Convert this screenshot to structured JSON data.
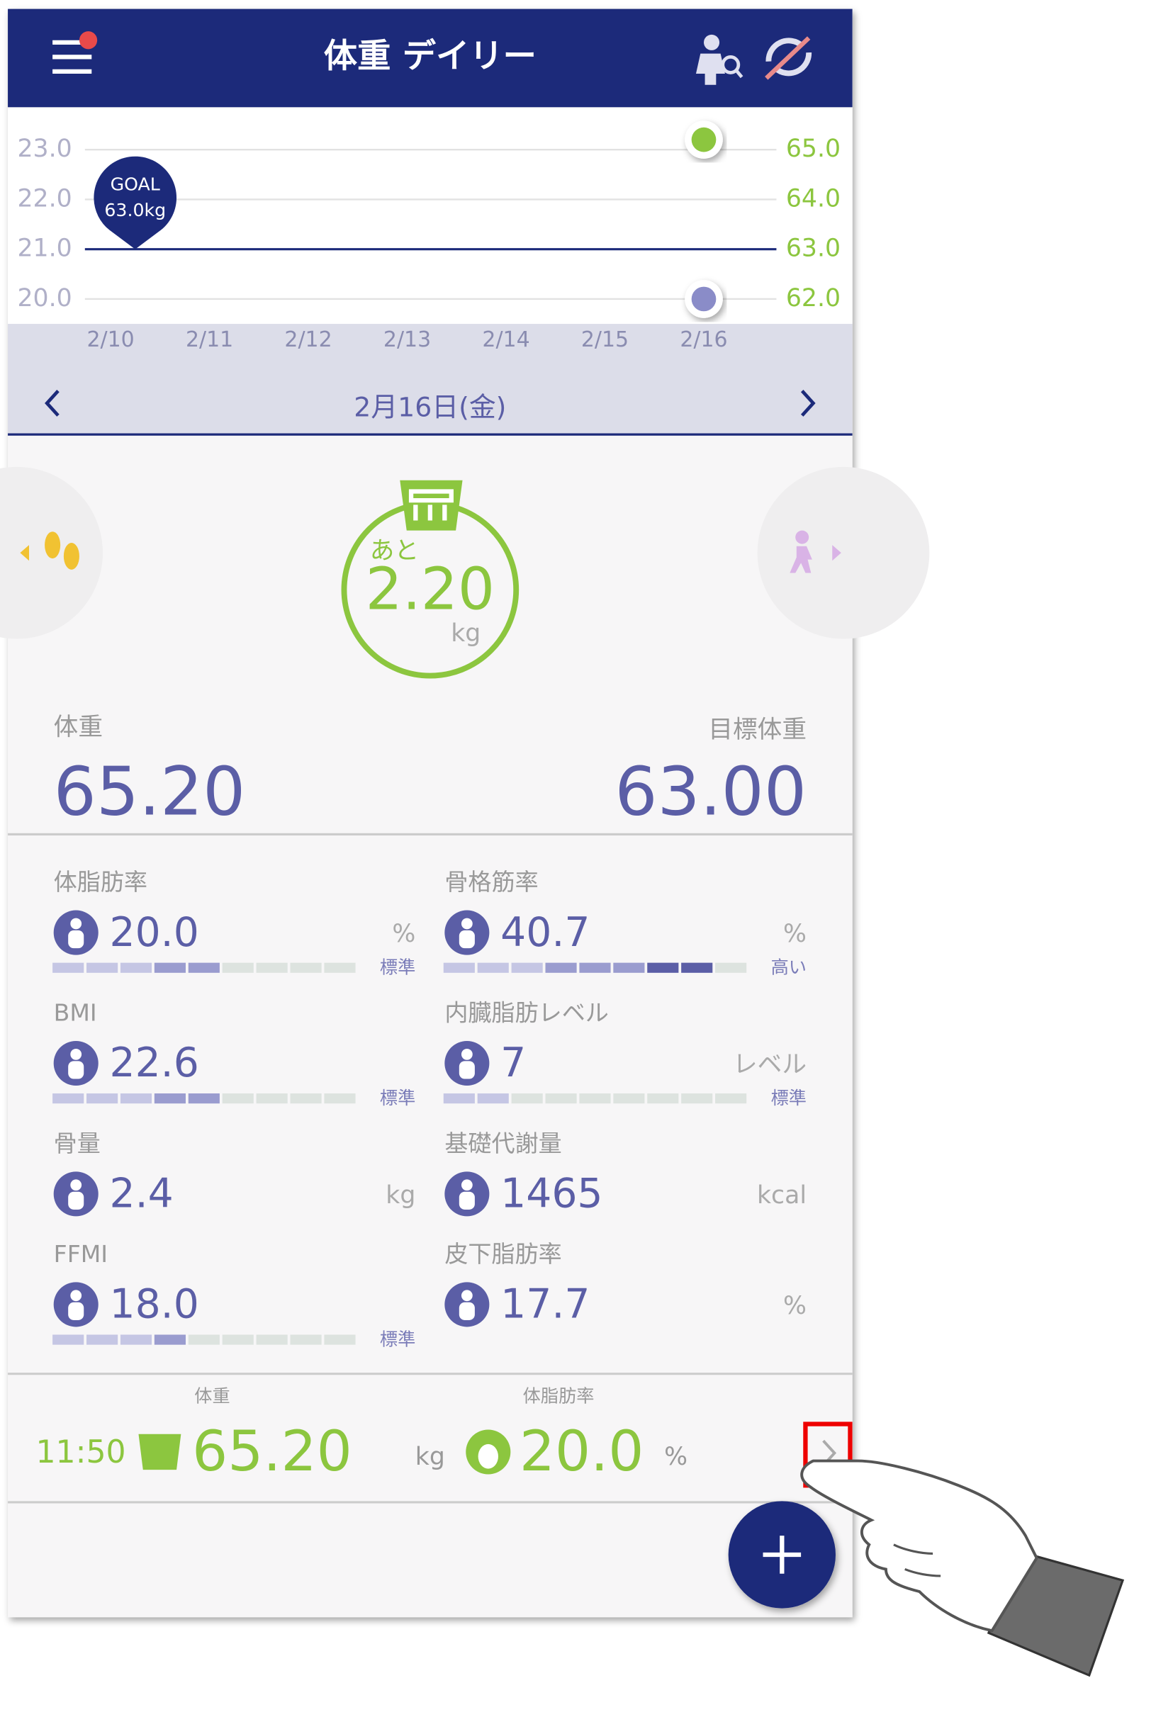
{
  "header": {
    "title": "体重 デイリー"
  },
  "chart_data": {
    "type": "line",
    "categories": [
      "2/10",
      "2/11",
      "2/12",
      "2/13",
      "2/14",
      "2/15",
      "2/16"
    ],
    "ylim": [
      19.5,
      23.83
    ],
    "yticks": [
      {
        "value": 20,
        "label": "20.0"
      },
      {
        "value": 21,
        "label": "21.0"
      },
      {
        "value": 22,
        "label": "22.0"
      },
      {
        "value": 23,
        "label": "23.0"
      }
    ],
    "y2lim": [
      61.5,
      65.83
    ],
    "y2ticks": [
      {
        "value": 62,
        "label": "62.0"
      },
      {
        "value": 63,
        "label": "63.0"
      },
      {
        "value": 64,
        "label": "64.0"
      },
      {
        "value": 65,
        "label": "65.0"
      }
    ],
    "grid": true,
    "series": [
      {
        "color": "#8cc63f",
        "axis": "y2",
        "values": [
          null,
          null,
          null,
          null,
          null,
          null,
          65.2
        ]
      },
      {
        "color": "#8a8cc8",
        "values": [
          null,
          null,
          null,
          null,
          null,
          null,
          20.0
        ]
      }
    ],
    "goal": {
      "value": 63,
      "title": "GOAL",
      "label": "63.0kg"
    }
  },
  "date_nav": {
    "date": "2月16日(金)"
  },
  "ring": {
    "prefix": "あと",
    "value": "2.20",
    "unit": "kg"
  },
  "weight": {
    "label": "体重",
    "value": "65.20"
  },
  "target": {
    "label": "目標体重",
    "value": "63.00"
  },
  "metrics": [
    {
      "label": "体脂肪率",
      "value": "20.0",
      "unit": "%",
      "status": "標準",
      "gauge": 5
    },
    {
      "label": "骨格筋率",
      "value": "40.7",
      "unit": "%",
      "status": "高い",
      "gauge": 8
    },
    {
      "label": "BMI",
      "value": "22.6",
      "status": "標準",
      "gauge": 5
    },
    {
      "label": "内臓脂肪レベル",
      "value": "7",
      "unit": "レベル",
      "status": "標準",
      "gauge": 2
    },
    {
      "label": "骨量",
      "value": "2.4",
      "unit": "kg"
    },
    {
      "label": "基礎代謝量",
      "value": "1465",
      "unit": "kcal"
    },
    {
      "label": "FFMI",
      "value": "18.0",
      "status": "標準",
      "gauge": 4
    },
    {
      "label": "皮下脂肪率",
      "value": "17.7",
      "unit": "%"
    }
  ],
  "record": {
    "weight_header": "体重",
    "fat_header": "体脂肪率",
    "time": "11:50",
    "weight": "65.20",
    "weight_unit": "kg",
    "fat": "20.0",
    "fat_unit": "%"
  }
}
